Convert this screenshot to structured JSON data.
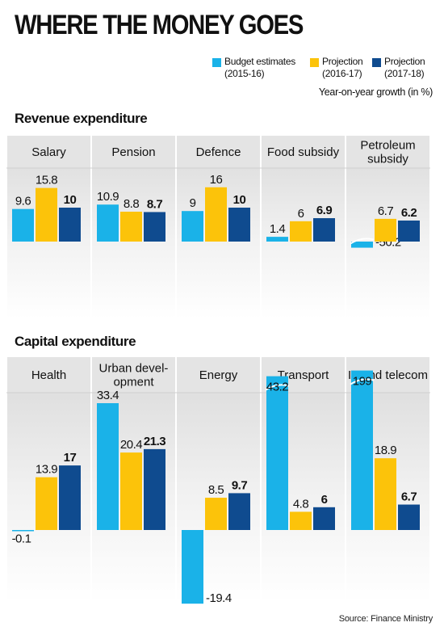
{
  "title": "WHERE THE MONEY GOES",
  "legend": [
    {
      "line1": "Budget estimates",
      "line2": "(2015-16)",
      "color": "#1ab2e8"
    },
    {
      "line1": "Projection",
      "line2": "(2016-17)",
      "color": "#fcc30a"
    },
    {
      "line1": "Projection",
      "line2": "(2017-18)",
      "color": "#0f4b8f"
    }
  ],
  "growth_note": "Year-on-year growth (in %)",
  "source": "Source: Finance Ministry",
  "chart_data": [
    {
      "type": "bar",
      "title": "Revenue expenditure",
      "series_labels": [
        "Budget estimates (2015-16)",
        "Projection (2016-17)",
        "Projection (2017-18)"
      ],
      "panels": [
        {
          "label": "Salary",
          "values": [
            9.6,
            15.8,
            10
          ],
          "value_labels": [
            "9.6",
            "15.8",
            "10"
          ]
        },
        {
          "label": "Pension",
          "values": [
            10.9,
            8.8,
            8.7
          ],
          "value_labels": [
            "10.9",
            "8.8",
            "8.7"
          ]
        },
        {
          "label": "Defence",
          "values": [
            9,
            16,
            10
          ],
          "value_labels": [
            "9",
            "16",
            "10"
          ]
        },
        {
          "label": "Food subsidy",
          "values": [
            1.4,
            6,
            6.9
          ],
          "value_labels": [
            "1.4",
            "6",
            "6.9"
          ]
        },
        {
          "label": "Petroleum subsidy",
          "values": [
            -50.2,
            6.7,
            6.2
          ],
          "value_labels": [
            "-50.2",
            "6.7",
            "6.2"
          ],
          "broken": [
            0
          ]
        }
      ]
    },
    {
      "type": "bar",
      "title": "Capital expenditure",
      "series_labels": [
        "Budget estimates (2015-16)",
        "Projection (2016-17)",
        "Projection (2017-18)"
      ],
      "panels": [
        {
          "label": "Health",
          "values": [
            -0.1,
            13.9,
            17
          ],
          "value_labels": [
            "-0.1",
            "13.9",
            "17"
          ]
        },
        {
          "label": "Urban development",
          "values": [
            33.4,
            20.4,
            21.3
          ],
          "value_labels": [
            "33.4",
            "20.4",
            "21.3"
          ]
        },
        {
          "label": "Energy",
          "values": [
            -19.4,
            8.5,
            9.7
          ],
          "value_labels": [
            "-19.4",
            "8.5",
            "9.7"
          ]
        },
        {
          "label": "Transport",
          "values": [
            43.2,
            4.8,
            6
          ],
          "value_labels": [
            "43.2",
            "4.8",
            "6"
          ],
          "broken": [
            0
          ]
        },
        {
          "label": "IT and telecom",
          "values": [
            199,
            18.9,
            6.7
          ],
          "value_labels": [
            "199",
            "18.9",
            "6.7"
          ],
          "broken": [
            0
          ]
        }
      ]
    }
  ]
}
